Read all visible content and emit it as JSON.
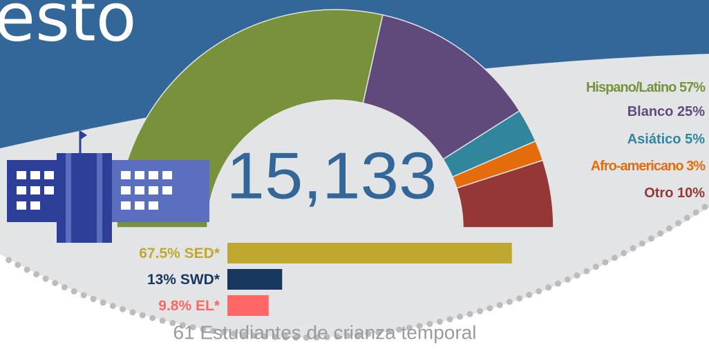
{
  "title_fragment": "esto",
  "total": "15,133",
  "footnote": "61 Estudiantes de crianza temporal",
  "chart_data": [
    {
      "type": "pie",
      "categories": [
        "Hispano/Latino",
        "Blanco",
        "Asiático",
        "Afro-americano",
        "Otro"
      ],
      "values": [
        57,
        25,
        5,
        3,
        10
      ],
      "value_labels": [
        "57%",
        "25%",
        "5%",
        "3%",
        "10%"
      ],
      "colors": [
        "#77923a",
        "#604a7b",
        "#31859c",
        "#e46c0a",
        "#953735"
      ]
    },
    {
      "type": "bar",
      "categories": [
        "SED*",
        "SWD*",
        "EL*"
      ],
      "values": [
        67.5,
        13,
        9.8
      ],
      "value_labels": [
        "67.5%",
        "13%",
        "9.8%"
      ],
      "colors": [
        "#c0a830",
        "#17375e",
        "#ff6666"
      ]
    }
  ]
}
